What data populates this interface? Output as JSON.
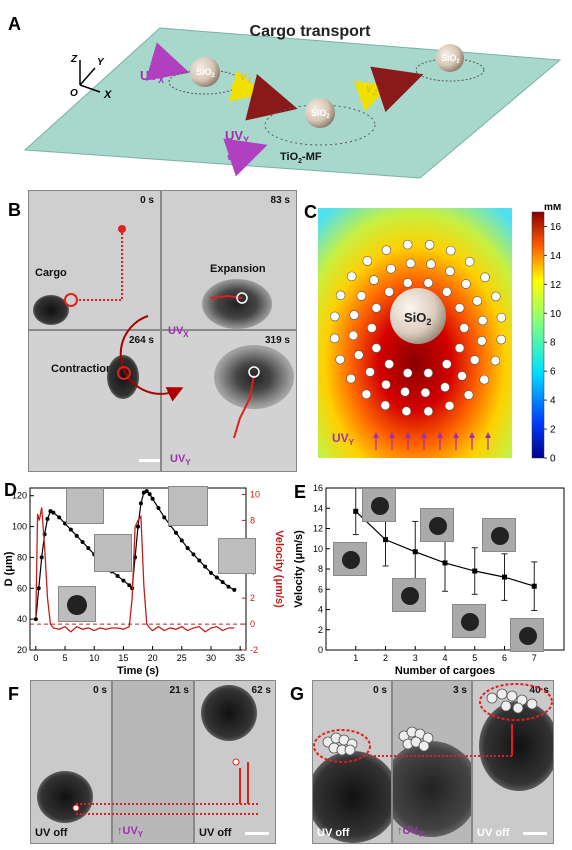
{
  "panels": {
    "A": {
      "label": "A",
      "title": "Cargo transport",
      "axis_z": "Z",
      "axis_y": "Y",
      "axis_x": "X",
      "axis_o": "O",
      "uvx_main": "UV",
      "uvx_sub": "X",
      "uvy_main": "UV",
      "uvy_sub": "Y",
      "v1_main": "v",
      "v1_sub": "1",
      "v2_main": "v",
      "v2_sub": "2",
      "sio2_main": "SiO",
      "sio2_sub": "2",
      "mf_label_main": "TiO",
      "mf_label_sub": "2",
      "mf_label_rest": "-MF"
    },
    "B": {
      "label": "B",
      "times": [
        "0 s",
        "83 s",
        "264 s",
        "319 s"
      ],
      "cargo": "Cargo",
      "expansion": "Expansion",
      "contraction": "Contraction",
      "uvx_main": "UV",
      "uvx_sub": "X",
      "uvy_main": "UV",
      "uvy_sub": "Y"
    },
    "C": {
      "label": "C",
      "colorbar_unit": "mM",
      "colorbar_ticks": [
        "16",
        "14",
        "12",
        "10",
        "8",
        "6",
        "4",
        "2",
        "0"
      ],
      "colorbar_max": 17,
      "sio2_main": "SiO",
      "sio2_sub": "2",
      "uvy_main": "UV",
      "uvy_sub": "Y"
    },
    "F": {
      "label": "F",
      "times": [
        "0 s",
        "21 s",
        "62 s"
      ],
      "uv_off_1": "UV off",
      "uvy_main": "UV",
      "uvy_sub": "Y",
      "uv_off_2": "UV off"
    },
    "G": {
      "label": "G",
      "times": [
        "0 s",
        "3 s",
        "40 s"
      ],
      "uv_off_1": "UV off",
      "uvy_main": "UV",
      "uvy_sub": "Y",
      "uv_off_2": "UV off"
    }
  },
  "chart_data": [
    {
      "panel": "D",
      "type": "line",
      "label": "D",
      "xlabel": "Time (s)",
      "ylabel_left": "D (μm)",
      "ylabel_right": "Velocity (μm/s)",
      "xlim": [
        -1,
        36
      ],
      "ylim_left": [
        20,
        125
      ],
      "ylim_right": [
        -2,
        10.5
      ],
      "x_ticks": [
        0,
        5,
        10,
        15,
        20,
        25,
        30,
        35
      ],
      "y_ticks_left": [
        20,
        40,
        60,
        80,
        100,
        120
      ],
      "y_ticks_right": [
        -2,
        0,
        2,
        4,
        6,
        8,
        10
      ],
      "series": [
        {
          "axis": "left",
          "color": "#000000",
          "x": [
            0,
            0.5,
            1,
            1.5,
            2,
            2.5,
            3,
            4,
            5,
            6,
            7,
            8,
            9,
            10,
            11,
            12,
            13,
            14,
            15,
            16,
            16.5,
            17,
            17.5,
            18,
            18.5,
            19,
            19.5,
            20,
            21,
            22,
            23,
            24,
            25,
            26,
            27,
            28,
            29,
            30,
            31,
            32,
            33,
            34
          ],
          "y": [
            40,
            60,
            80,
            95,
            105,
            110,
            109,
            106,
            102,
            98,
            94,
            90,
            86,
            82,
            78,
            75,
            71,
            68,
            65,
            62,
            60,
            80,
            100,
            115,
            122,
            123,
            121,
            118,
            112,
            106,
            101,
            96,
            91,
            86,
            82,
            78,
            74,
            70,
            67,
            64,
            61,
            59
          ]
        },
        {
          "axis": "right",
          "color": "#c0201c",
          "x": [
            0,
            0.3,
            0.6,
            1,
            1.5,
            2,
            2.5,
            3,
            4,
            5,
            6,
            7,
            8,
            9,
            10,
            11,
            12,
            13,
            14,
            15,
            16,
            16.5,
            17,
            17.5,
            18,
            18.5,
            19,
            19.5,
            20,
            21,
            22,
            23,
            24,
            25,
            26,
            27,
            28,
            29,
            30,
            31,
            32,
            33,
            34
          ],
          "y": [
            0.5,
            8.5,
            8.0,
            9.0,
            6.0,
            2.0,
            0.0,
            -0.3,
            -0.4,
            -0.2,
            -0.6,
            -0.2,
            -0.4,
            -0.3,
            -0.5,
            -0.3,
            -0.4,
            -0.3,
            -0.3,
            -0.4,
            -0.2,
            2.0,
            7.5,
            8.0,
            8.3,
            3.0,
            0.0,
            -0.3,
            -0.5,
            -0.2,
            -0.5,
            -0.3,
            -0.4,
            -0.2,
            -0.5,
            -0.3,
            -0.2,
            -0.6,
            -0.3,
            -0.2,
            -0.5,
            -0.3,
            -0.3
          ]
        }
      ],
      "reference_line": {
        "axis": "right",
        "y": 0,
        "style": "dashed",
        "color": "#c0201c"
      }
    },
    {
      "panel": "E",
      "type": "line",
      "label": "E",
      "xlabel": "Number of cargoes",
      "ylabel": "Velocity (μm/s)",
      "xlim": [
        0,
        8
      ],
      "ylim": [
        0,
        16
      ],
      "x_ticks": [
        1,
        2,
        3,
        4,
        5,
        6,
        7
      ],
      "y_ticks": [
        0,
        2,
        4,
        6,
        8,
        10,
        12,
        14,
        16
      ],
      "x": [
        1,
        2,
        3,
        4,
        5,
        6,
        7
      ],
      "y": [
        13.7,
        10.9,
        9.7,
        8.6,
        7.8,
        7.2,
        6.3
      ],
      "err": [
        2.3,
        2.6,
        3.0,
        2.8,
        2.3,
        2.3,
        2.4
      ]
    }
  ]
}
